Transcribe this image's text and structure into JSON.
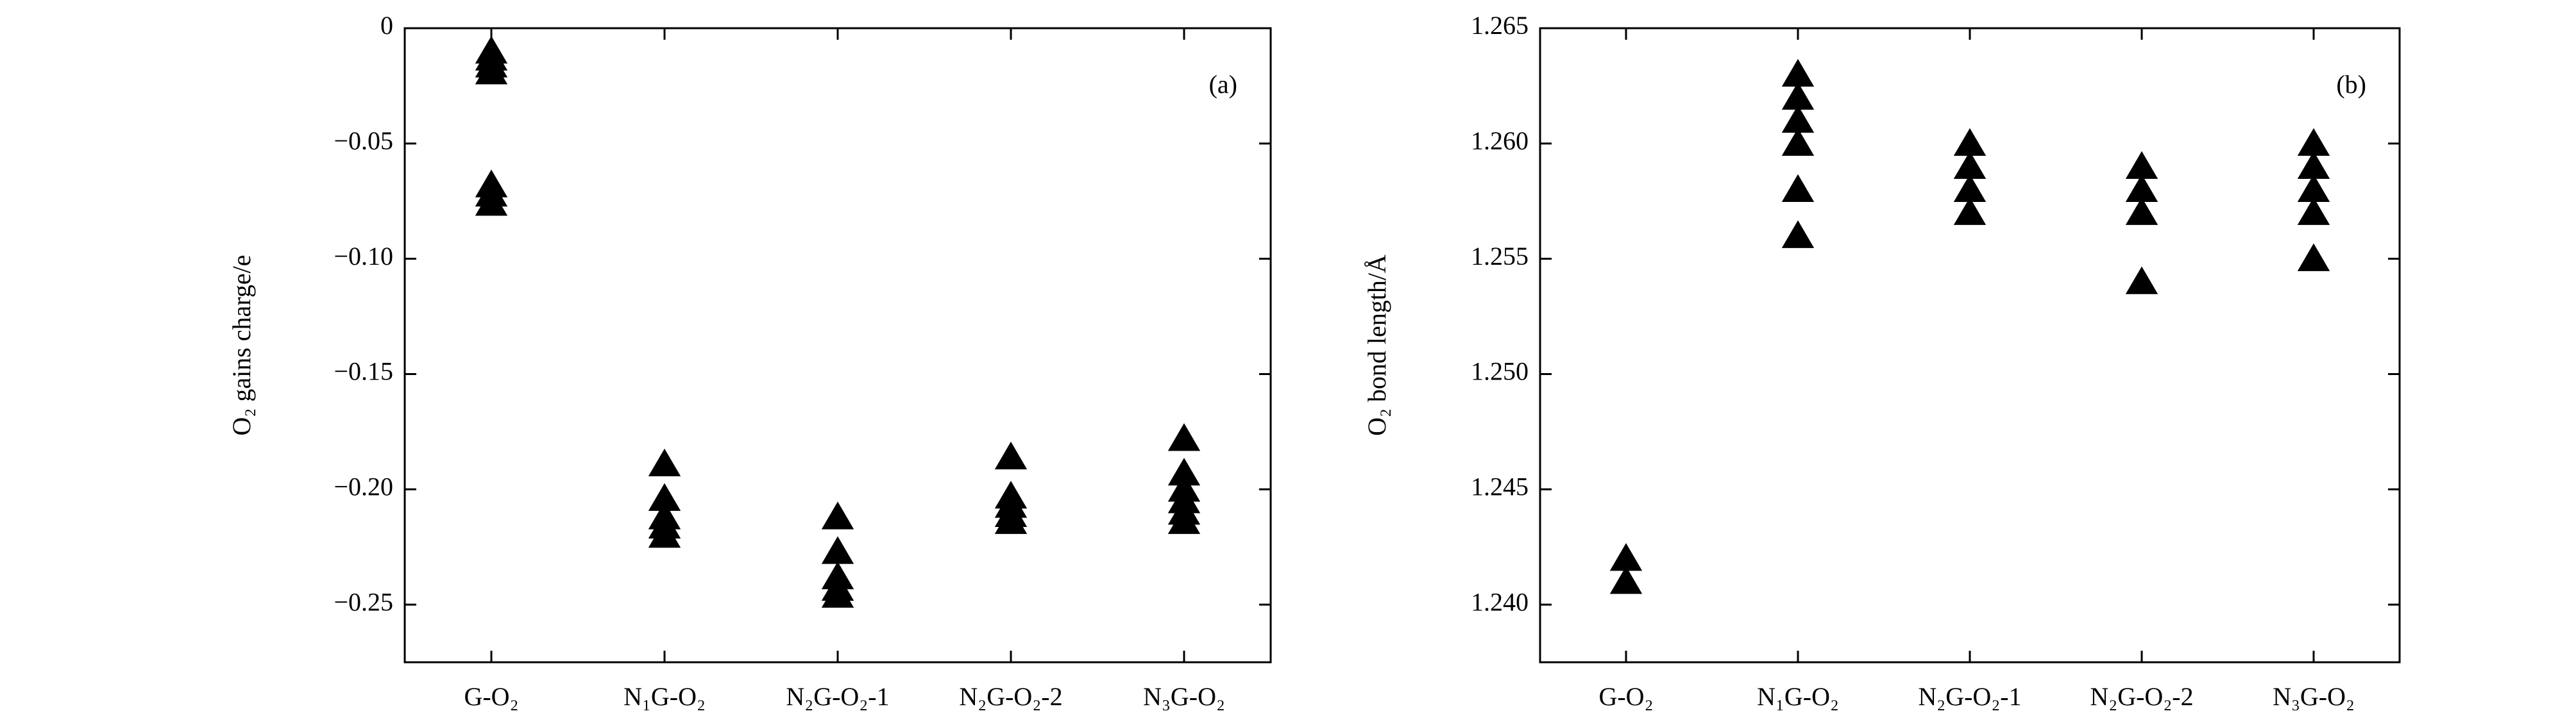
{
  "chart_data": [
    {
      "type": "scatter",
      "annotation": "(a)",
      "ylabel": "O₂ gains charge/e",
      "categories": [
        "G-O₂",
        "N₁G-O₂",
        "N₂G-O₂-1",
        "N₂G-O₂-2",
        "N₃G-O₂"
      ],
      "x": [
        "G-O₂",
        "G-O₂",
        "G-O₂",
        "G-O₂",
        "G-O₂",
        "G-O₂",
        "G-O₂",
        "N₁G-O₂",
        "N₁G-O₂",
        "N₁G-O₂",
        "N₁G-O₂",
        "N₁G-O₂",
        "N₂G-O₂-1",
        "N₂G-O₂-1",
        "N₂G-O₂-1",
        "N₂G-O₂-1",
        "N₂G-O₂-1",
        "N₂G-O₂-2",
        "N₂G-O₂-2",
        "N₂G-O₂-2",
        "N₂G-O₂-2",
        "N₂G-O₂-2",
        "N₃G-O₂",
        "N₃G-O₂",
        "N₃G-O₂",
        "N₃G-O₂",
        "N₃G-O₂",
        "N₃G-O₂"
      ],
      "values": [
        -0.01,
        -0.013,
        -0.016,
        -0.019,
        -0.068,
        -0.072,
        -0.076,
        -0.189,
        -0.204,
        -0.212,
        -0.216,
        -0.22,
        -0.212,
        -0.227,
        -0.238,
        -0.243,
        -0.246,
        -0.186,
        -0.203,
        -0.207,
        -0.211,
        -0.214,
        -0.178,
        -0.193,
        -0.2,
        -0.205,
        -0.21,
        -0.214
      ],
      "color": "#000000",
      "ylim": [
        -0.275,
        0
      ],
      "yticks": [
        0,
        {
          "value": -0.05,
          "label": "−0.05"
        },
        {
          "value": -0.1,
          "label": "−0.10"
        },
        {
          "value": -0.15,
          "label": "−0.15"
        },
        {
          "value": -0.2,
          "label": "−0.20"
        },
        {
          "value": -0.25,
          "label": "−0.25"
        }
      ]
    },
    {
      "type": "scatter",
      "annotation": "(b)",
      "ylabel": "O₂ bond length/Å",
      "categories": [
        "G-O₂",
        "N₁G-O₂",
        "N₂G-O₂-1",
        "N₂G-O₂-2",
        "N₃G-O₂"
      ],
      "x": [
        "G-O₂",
        "G-O₂",
        "N₁G-O₂",
        "N₁G-O₂",
        "N₁G-O₂",
        "N₁G-O₂",
        "N₁G-O₂",
        "N₁G-O₂",
        "N₂G-O₂-1",
        "N₂G-O₂-1",
        "N₂G-O₂-1",
        "N₂G-O₂-1",
        "N₂G-O₂-2",
        "N₂G-O₂-2",
        "N₂G-O₂-2",
        "N₂G-O₂-2",
        "N₃G-O₂",
        "N₃G-O₂",
        "N₃G-O₂",
        "N₃G-O₂",
        "N₃G-O₂"
      ],
      "values": [
        1.242,
        1.241,
        1.263,
        1.262,
        1.261,
        1.26,
        1.258,
        1.256,
        1.26,
        1.259,
        1.258,
        1.257,
        1.259,
        1.258,
        1.257,
        1.254,
        1.26,
        1.259,
        1.258,
        1.257,
        1.255
      ],
      "color": "#000000",
      "ylim": [
        1.2375,
        1.265
      ],
      "yticks": [
        1.265,
        {
          "value": 1.26,
          "label": "1.260"
        },
        1.255,
        {
          "value": 1.25,
          "label": "1.250"
        },
        1.245,
        {
          "value": 1.24,
          "label": "1.240"
        }
      ]
    }
  ]
}
